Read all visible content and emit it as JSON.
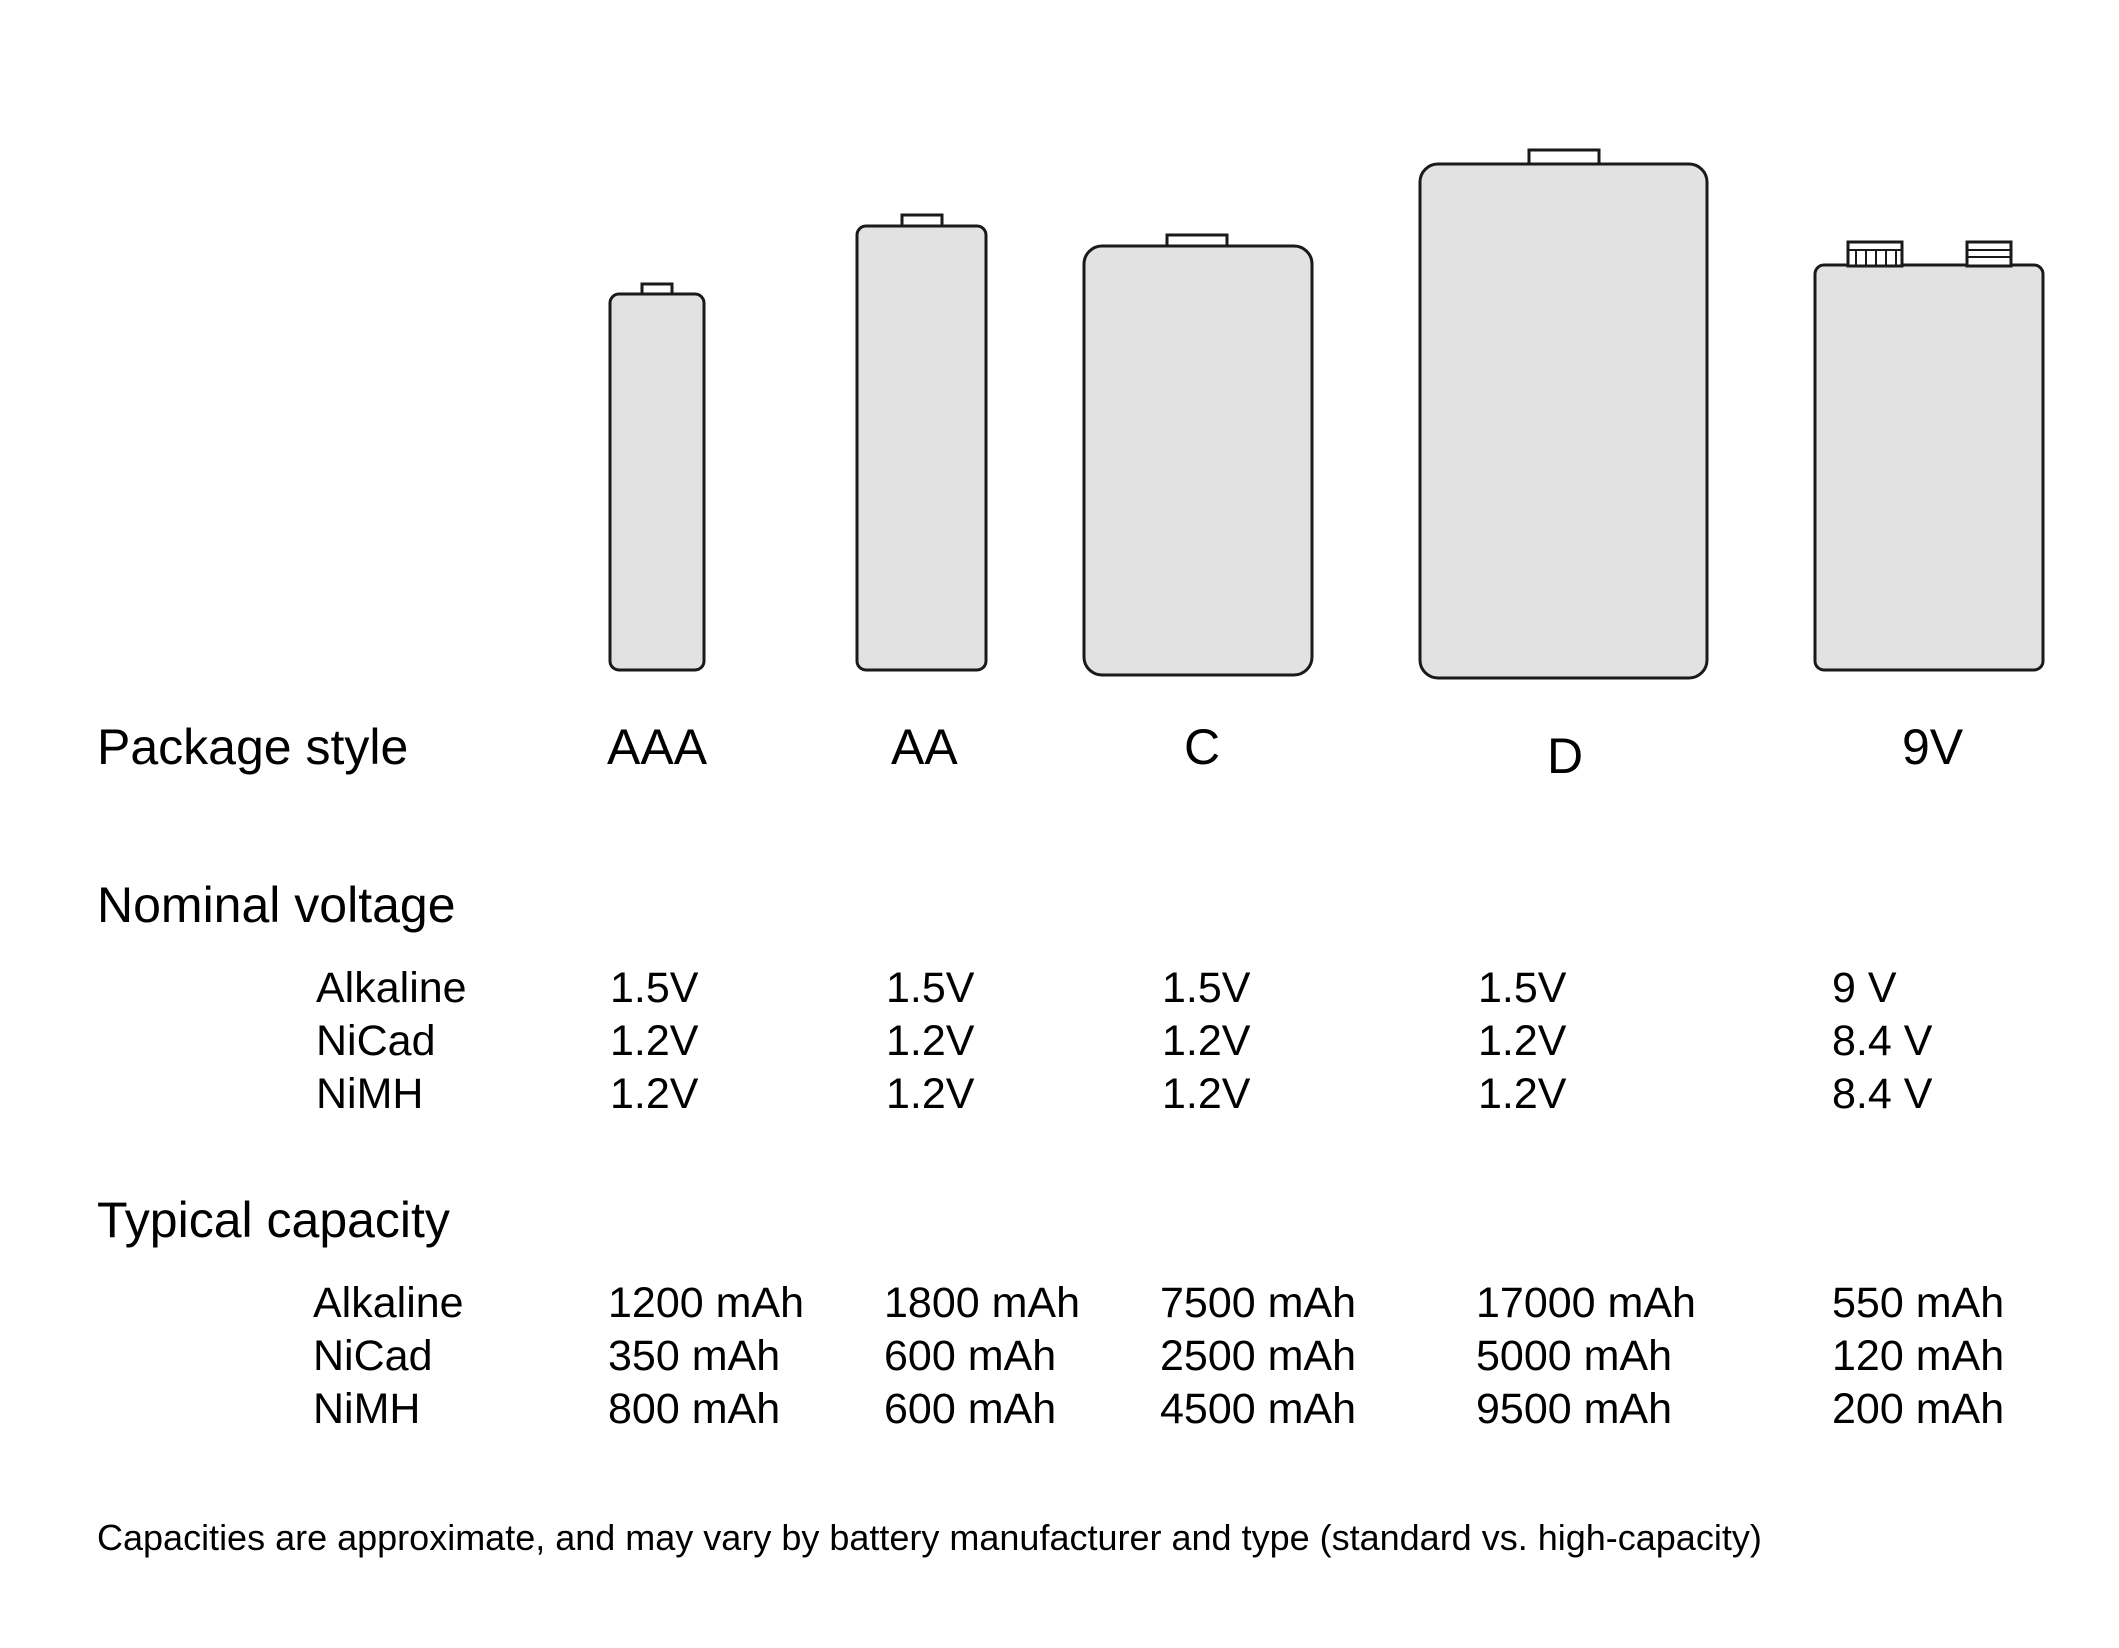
{
  "colors": {
    "battery_fill": "#e2e2e2",
    "battery_stroke": "#1a1a1a",
    "text": "#000000",
    "background": "#ffffff"
  },
  "headings": {
    "package_style": "Package style",
    "nominal_voltage": "Nominal voltage",
    "typical_capacity": "Typical capacity"
  },
  "chemistries": [
    "Alkaline",
    "NiCad",
    "NiMH"
  ],
  "packages": [
    {
      "name": "AAA",
      "voltage": [
        "1.5V",
        "1.2V",
        "1.2V"
      ],
      "capacity": [
        "1200 mAh",
        "350 mAh",
        "800 mAh"
      ]
    },
    {
      "name": "AA",
      "voltage": [
        "1.5V",
        "1.2V",
        "1.2V"
      ],
      "capacity": [
        "1800 mAh",
        "600 mAh",
        "600 mAh"
      ]
    },
    {
      "name": "C",
      "voltage": [
        "1.5V",
        "1.2V",
        "1.2V"
      ],
      "capacity": [
        "7500 mAh",
        "2500 mAh",
        "4500 mAh"
      ]
    },
    {
      "name": "D",
      "voltage": [
        "1.5V",
        "1.2V",
        "1.2V"
      ],
      "capacity": [
        "17000 mAh",
        "5000 mAh",
        "9500 mAh"
      ]
    },
    {
      "name": "9V",
      "voltage": [
        "9 V",
        "8.4 V",
        "8.4 V"
      ],
      "capacity": [
        "550 mAh",
        "120 mAh",
        "200 mAh"
      ]
    }
  ],
  "footnote": "Capacities are approximate, and may vary by battery manufacturer and type (standard vs. high-capacity)",
  "icons": [
    "aaa-battery-icon",
    "aa-battery-icon",
    "c-battery-icon",
    "d-battery-icon",
    "9v-battery-icon"
  ]
}
